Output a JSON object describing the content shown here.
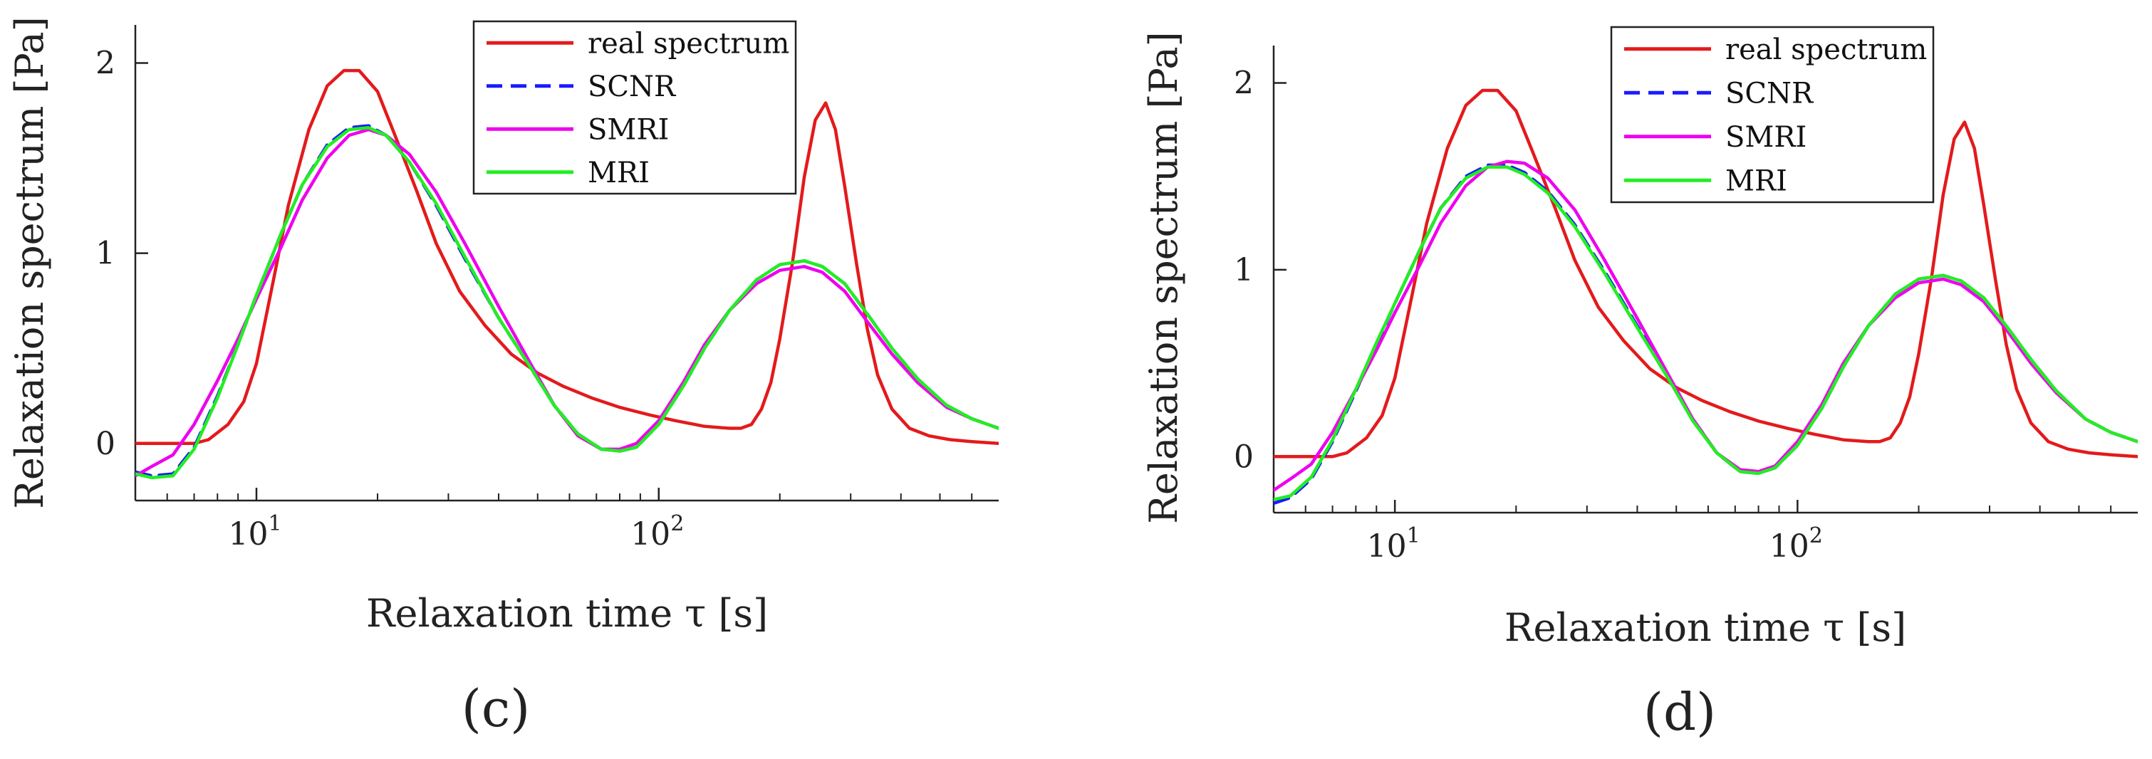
{
  "chart_data": [
    {
      "type": "line",
      "panel_label": "(c)",
      "xlabel": "Relaxation time τ [s]",
      "ylabel": "Relaxation spectrum  [Pa]",
      "xscale": "log",
      "xlim": [
        5,
        700
      ],
      "ylim": [
        -0.3,
        2.2
      ],
      "xticks": [
        {
          "base": "10",
          "exp": "1",
          "value": 10
        },
        {
          "base": "10",
          "exp": "2",
          "value": 100
        }
      ],
      "yticks": [
        {
          "label": "0",
          "value": 0
        },
        {
          "label": "1",
          "value": 1
        },
        {
          "label": "2",
          "value": 2
        }
      ],
      "legend_position": "top-center",
      "series": [
        {
          "name": "real spectrum",
          "color": "#e31a1c",
          "dash": "solid",
          "x": [
            5,
            6,
            7,
            7.6,
            8.5,
            9.3,
            10,
            11,
            12,
            13.5,
            15,
            16.5,
            18,
            20,
            22,
            25,
            28,
            32,
            37,
            43,
            50,
            58,
            68,
            80,
            95,
            110,
            130,
            150,
            160,
            170,
            180,
            190,
            200,
            215,
            230,
            245,
            260,
            275,
            290,
            310,
            330,
            350,
            380,
            420,
            470,
            530,
            600,
            700
          ],
          "y": [
            0,
            0,
            0,
            0.02,
            0.1,
            0.22,
            0.42,
            0.85,
            1.25,
            1.65,
            1.88,
            1.96,
            1.96,
            1.85,
            1.63,
            1.33,
            1.05,
            0.8,
            0.62,
            0.47,
            0.37,
            0.3,
            0.24,
            0.19,
            0.15,
            0.12,
            0.09,
            0.08,
            0.08,
            0.1,
            0.18,
            0.32,
            0.55,
            0.95,
            1.4,
            1.7,
            1.79,
            1.65,
            1.35,
            0.95,
            0.6,
            0.36,
            0.18,
            0.08,
            0.04,
            0.02,
            0.01,
            0
          ]
        },
        {
          "name": "SCNR",
          "color": "#1a1aff",
          "dash": "dashed",
          "x": [
            5,
            5.5,
            6.2,
            7,
            8,
            9,
            10,
            11.5,
            13,
            15,
            17,
            19,
            21,
            24,
            28,
            33,
            40,
            48,
            55,
            63,
            72,
            80,
            88,
            100,
            115,
            130,
            150,
            175,
            200,
            230,
            255,
            290,
            330,
            380,
            440,
            520,
            600,
            700
          ],
          "y": [
            -0.15,
            -0.17,
            -0.16,
            -0.02,
            0.25,
            0.52,
            0.78,
            1.1,
            1.36,
            1.57,
            1.66,
            1.67,
            1.62,
            1.48,
            1.25,
            0.97,
            0.66,
            0.4,
            0.2,
            0.05,
            -0.03,
            -0.04,
            -0.02,
            0.1,
            0.3,
            0.5,
            0.7,
            0.86,
            0.94,
            0.96,
            0.93,
            0.84,
            0.68,
            0.5,
            0.34,
            0.2,
            0.13,
            0.08
          ]
        },
        {
          "name": "SMRI",
          "color": "#ee00ee",
          "dash": "solid",
          "x": [
            5,
            5.5,
            6.2,
            7,
            8,
            9,
            10,
            11.5,
            13,
            15,
            17,
            19,
            21,
            24,
            28,
            33,
            40,
            48,
            55,
            63,
            72,
            80,
            88,
            100,
            115,
            130,
            150,
            175,
            200,
            230,
            255,
            290,
            330,
            380,
            440,
            520,
            600,
            700
          ],
          "y": [
            -0.17,
            -0.12,
            -0.06,
            0.1,
            0.33,
            0.55,
            0.76,
            1.03,
            1.28,
            1.5,
            1.62,
            1.65,
            1.62,
            1.52,
            1.32,
            1.05,
            0.72,
            0.42,
            0.2,
            0.04,
            -0.03,
            -0.03,
            0,
            0.12,
            0.32,
            0.52,
            0.7,
            0.84,
            0.91,
            0.93,
            0.9,
            0.8,
            0.64,
            0.47,
            0.32,
            0.19,
            0.13,
            0.08
          ]
        },
        {
          "name": "MRI",
          "color": "#22ee22",
          "dash": "solid",
          "x": [
            5,
            5.5,
            6.2,
            7,
            8,
            9,
            10,
            11.5,
            13,
            15,
            17,
            19,
            21,
            24,
            28,
            33,
            40,
            48,
            55,
            63,
            72,
            80,
            88,
            100,
            115,
            130,
            150,
            175,
            200,
            230,
            255,
            290,
            330,
            380,
            440,
            520,
            600,
            700
          ],
          "y": [
            -0.16,
            -0.18,
            -0.17,
            -0.03,
            0.24,
            0.52,
            0.78,
            1.1,
            1.36,
            1.56,
            1.65,
            1.66,
            1.62,
            1.48,
            1.26,
            0.98,
            0.66,
            0.4,
            0.2,
            0.05,
            -0.03,
            -0.04,
            -0.02,
            0.1,
            0.3,
            0.5,
            0.7,
            0.86,
            0.94,
            0.96,
            0.93,
            0.84,
            0.68,
            0.5,
            0.34,
            0.2,
            0.13,
            0.08
          ]
        }
      ]
    },
    {
      "type": "line",
      "panel_label": "(d)",
      "xlabel": "Relaxation time τ [s]",
      "ylabel": "Relaxation spectrum  [Pa]",
      "xscale": "log",
      "xlim": [
        5,
        700
      ],
      "ylim": [
        -0.3,
        2.2
      ],
      "xticks": [
        {
          "base": "10",
          "exp": "1",
          "value": 10
        },
        {
          "base": "10",
          "exp": "2",
          "value": 100
        }
      ],
      "yticks": [
        {
          "label": "0",
          "value": 0
        },
        {
          "label": "1",
          "value": 1
        },
        {
          "label": "2",
          "value": 2
        }
      ],
      "legend_position": "top-right",
      "series": [
        {
          "name": "real spectrum",
          "color": "#e31a1c",
          "dash": "solid",
          "x": [
            5,
            6,
            7,
            7.6,
            8.5,
            9.3,
            10,
            11,
            12,
            13.5,
            15,
            16.5,
            18,
            20,
            22,
            25,
            28,
            32,
            37,
            43,
            50,
            58,
            68,
            80,
            95,
            110,
            130,
            150,
            160,
            170,
            180,
            190,
            200,
            215,
            230,
            245,
            260,
            275,
            290,
            310,
            330,
            350,
            380,
            420,
            470,
            530,
            600,
            700
          ],
          "y": [
            0,
            0,
            0,
            0.02,
            0.1,
            0.22,
            0.42,
            0.85,
            1.25,
            1.65,
            1.88,
            1.96,
            1.96,
            1.85,
            1.63,
            1.33,
            1.05,
            0.8,
            0.62,
            0.47,
            0.37,
            0.3,
            0.24,
            0.19,
            0.15,
            0.12,
            0.09,
            0.08,
            0.08,
            0.1,
            0.18,
            0.32,
            0.55,
            0.95,
            1.4,
            1.7,
            1.79,
            1.65,
            1.35,
            0.95,
            0.6,
            0.36,
            0.18,
            0.08,
            0.04,
            0.02,
            0.01,
            0
          ]
        },
        {
          "name": "SCNR",
          "color": "#1a1aff",
          "dash": "dashed",
          "x": [
            5,
            5.5,
            6.2,
            7,
            8,
            9,
            10,
            11.5,
            13,
            15,
            17,
            19,
            21,
            24,
            28,
            33,
            40,
            48,
            55,
            63,
            72,
            80,
            88,
            100,
            115,
            130,
            150,
            175,
            200,
            230,
            255,
            290,
            330,
            380,
            440,
            520,
            600,
            700
          ],
          "y": [
            -0.25,
            -0.22,
            -0.12,
            0.08,
            0.35,
            0.6,
            0.82,
            1.1,
            1.33,
            1.5,
            1.56,
            1.56,
            1.52,
            1.42,
            1.24,
            1.0,
            0.7,
            0.42,
            0.2,
            0.02,
            -0.08,
            -0.09,
            -0.06,
            0.06,
            0.26,
            0.48,
            0.7,
            0.87,
            0.95,
            0.97,
            0.94,
            0.85,
            0.7,
            0.52,
            0.35,
            0.2,
            0.13,
            0.08
          ]
        },
        {
          "name": "SMRI",
          "color": "#ee00ee",
          "dash": "solid",
          "x": [
            5,
            5.5,
            6.2,
            7,
            8,
            9,
            10,
            11.5,
            13,
            15,
            17,
            19,
            21,
            24,
            28,
            33,
            40,
            48,
            55,
            63,
            72,
            80,
            88,
            100,
            115,
            130,
            150,
            175,
            200,
            230,
            255,
            290,
            330,
            380,
            440,
            520,
            600,
            700
          ],
          "y": [
            -0.18,
            -0.12,
            -0.04,
            0.13,
            0.36,
            0.57,
            0.77,
            1.02,
            1.25,
            1.45,
            1.55,
            1.58,
            1.57,
            1.49,
            1.32,
            1.06,
            0.74,
            0.43,
            0.2,
            0.02,
            -0.07,
            -0.08,
            -0.05,
            0.08,
            0.28,
            0.5,
            0.7,
            0.85,
            0.93,
            0.95,
            0.92,
            0.83,
            0.68,
            0.5,
            0.34,
            0.2,
            0.13,
            0.08
          ]
        },
        {
          "name": "MRI",
          "color": "#22ee22",
          "dash": "solid",
          "x": [
            5,
            5.5,
            6.2,
            7,
            8,
            9,
            10,
            11.5,
            13,
            15,
            17,
            19,
            21,
            24,
            28,
            33,
            40,
            48,
            55,
            63,
            72,
            80,
            88,
            100,
            115,
            130,
            150,
            175,
            200,
            230,
            255,
            290,
            330,
            380,
            440,
            520,
            600,
            700
          ],
          "y": [
            -0.23,
            -0.21,
            -0.11,
            0.09,
            0.36,
            0.61,
            0.82,
            1.1,
            1.33,
            1.49,
            1.55,
            1.55,
            1.51,
            1.41,
            1.23,
            0.99,
            0.69,
            0.41,
            0.19,
            0.02,
            -0.08,
            -0.09,
            -0.06,
            0.06,
            0.26,
            0.48,
            0.7,
            0.87,
            0.95,
            0.97,
            0.94,
            0.85,
            0.7,
            0.52,
            0.35,
            0.2,
            0.13,
            0.08
          ]
        }
      ]
    }
  ]
}
